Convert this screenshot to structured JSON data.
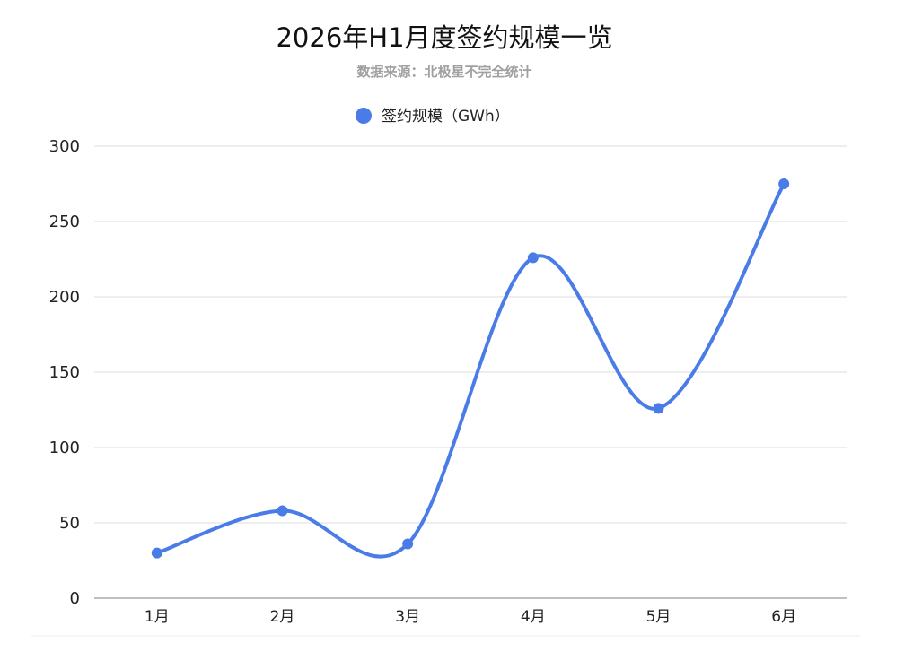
{
  "chart_data": {
    "type": "line",
    "title": "2026年H1月度签约规模一览",
    "subtitle": "数据来源：北极星不完全统计",
    "categories": [
      "1月",
      "2月",
      "3月",
      "4月",
      "5月",
      "6月"
    ],
    "series": [
      {
        "name": "签约规模（GWh）",
        "values": [
          30,
          58,
          36,
          226,
          126,
          275
        ],
        "color": "#4a7ce8"
      }
    ],
    "ylim": [
      0,
      300
    ],
    "yticks": [
      0,
      50,
      100,
      150,
      200,
      250,
      300
    ],
    "smooth": true,
    "markers": true,
    "grid": true,
    "legend": "top-center"
  }
}
